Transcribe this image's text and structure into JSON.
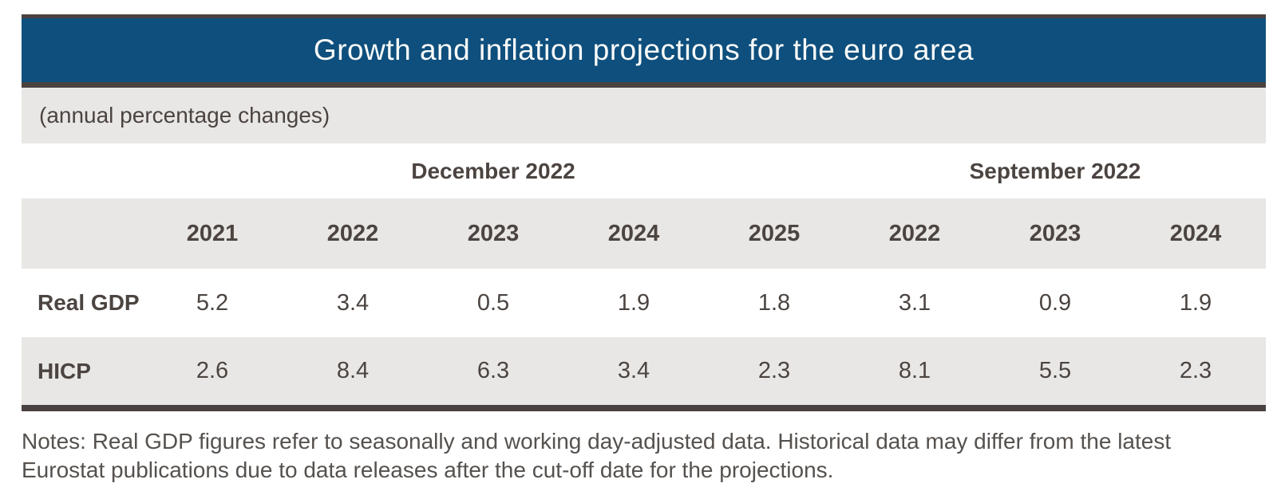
{
  "chart_data": {
    "type": "table",
    "title": "Growth and inflation projections for the euro area",
    "subtitle": "(annual percentage changes)",
    "column_groups": [
      {
        "label": "December 2022",
        "span": 5
      },
      {
        "label": "September 2022",
        "span": 3
      }
    ],
    "year_headers": [
      "2021",
      "2022",
      "2023",
      "2024",
      "2025",
      "2022",
      "2023",
      "2024"
    ],
    "rows": [
      {
        "label": "Real GDP",
        "values": [
          "5.2",
          "3.4",
          "0.5",
          "1.9",
          "1.8",
          "3.1",
          "0.9",
          "1.9"
        ]
      },
      {
        "label": "HICP",
        "values": [
          "2.6",
          "8.4",
          "6.3",
          "3.4",
          "2.3",
          "8.1",
          "5.5",
          "2.3"
        ]
      }
    ],
    "notes": "Notes: Real GDP figures refer to seasonally and working day-adjusted data. Historical data may differ from the latest Eurostat publications due to data releases after the cut-off date for the projections.",
    "layout_hints": {
      "header_position": "top",
      "grid": "horizontal-bands-only"
    }
  },
  "colors": {
    "header_blue": "#0e4f7d",
    "border_dark": "#4a4240",
    "band_gray": "#e8e7e5",
    "table_text": "#4b4441",
    "title_text": "#fafaf8",
    "notes_text": "#55514e"
  }
}
